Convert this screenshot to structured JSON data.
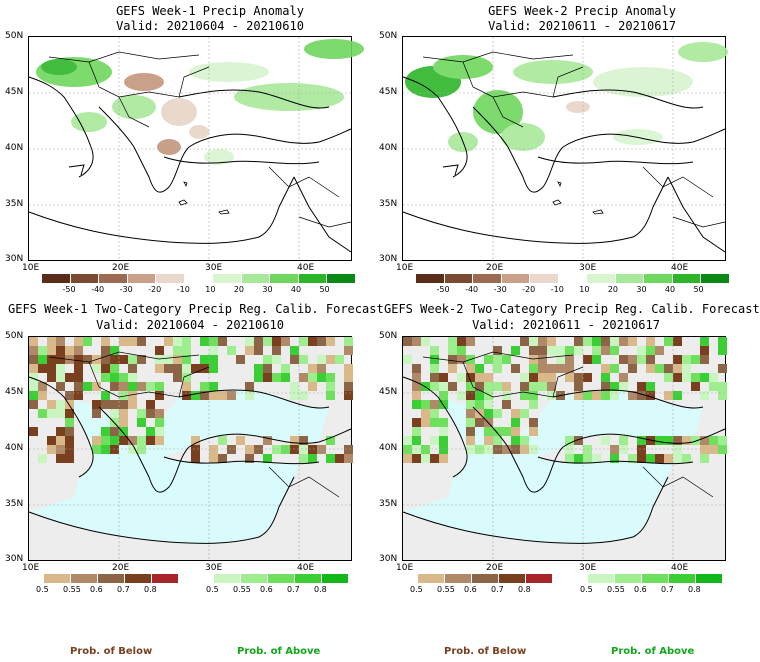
{
  "panels": [
    {
      "title": "GEFS Week-1 Precip Anomaly",
      "valid": "Valid: 20210604 - 20210610"
    },
    {
      "title": "GEFS Week-2 Precip Anomaly",
      "valid": "Valid: 20210611 - 20210617"
    },
    {
      "title": "GEFS Week-1 Two-Category Precip Reg. Calib. Forecast",
      "valid": "Valid: 20210604 - 20210610"
    },
    {
      "title": "GEFS Week-2 Two-Category Precip Reg. Calib. Forecast",
      "valid": "Valid: 20210611 - 20210617"
    }
  ],
  "lat_labels": [
    "50N",
    "45N",
    "40N",
    "35N",
    "30N"
  ],
  "lon_labels": [
    "10E",
    "20E",
    "30E",
    "40E"
  ],
  "anomaly_colorbar": {
    "labels": [
      "-50",
      "-40",
      "-30",
      "-20",
      "-10",
      "10",
      "20",
      "30",
      "40",
      "50"
    ],
    "colors": [
      "#5a2d1a",
      "#7a4a32",
      "#9c6b52",
      "#c9a08a",
      "#ead8cc",
      "#ffffff",
      "#d8f5d0",
      "#a8e89a",
      "#6fd65e",
      "#2db52a",
      "#0a8a14"
    ]
  },
  "below_colorbar": {
    "labels": [
      "0.5",
      "0.55",
      "0.6",
      "0.7",
      "0.8"
    ],
    "colors": [
      "#d9b98a",
      "#b08a68",
      "#8c6446",
      "#7a3f1e",
      "#a8252a"
    ]
  },
  "above_colorbar": {
    "labels": [
      "0.5",
      "0.55",
      "0.6",
      "0.7",
      "0.8"
    ],
    "colors": [
      "#c8f5c0",
      "#9eed8e",
      "#6fe05e",
      "#3bcf35",
      "#12b81a"
    ]
  },
  "footer": {
    "below_label": "Prob. of Below",
    "above_label": "Prob. of Above",
    "below_color": "#7a3f1e",
    "above_color": "#12a81a"
  },
  "map_colors": {
    "sea_forecast": "#d9fbfb",
    "land_no_signal": "#ededed"
  }
}
